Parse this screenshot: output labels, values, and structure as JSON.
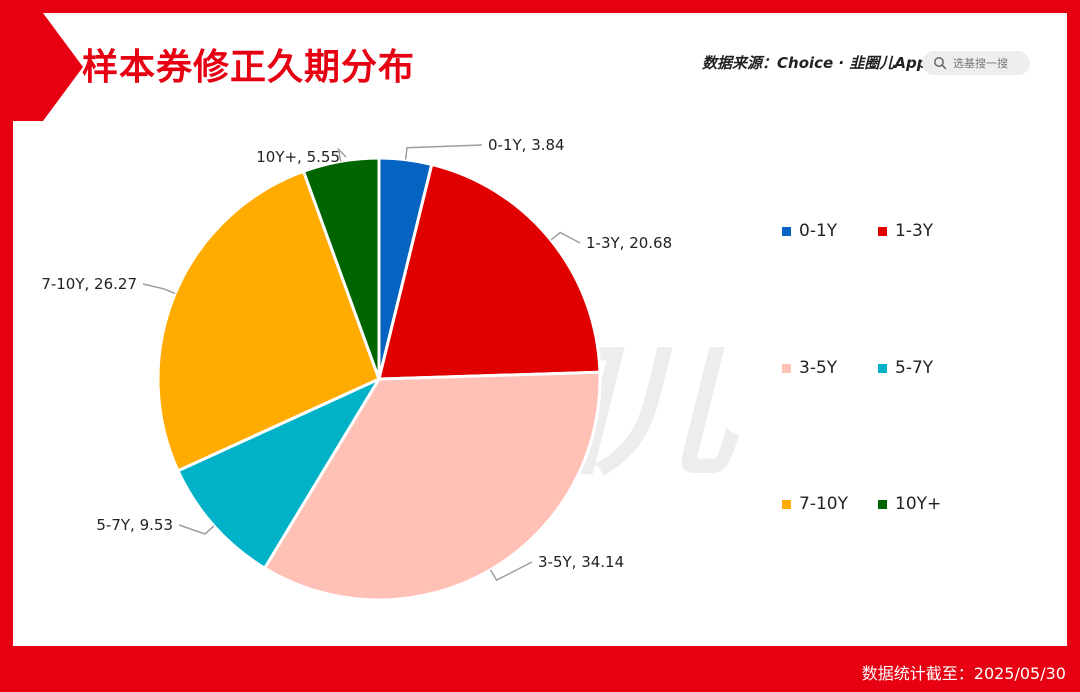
{
  "header": {
    "title": "样本券修正久期分布",
    "source": "数据来源：Choice · 韭圈儿App",
    "search_placeholder": "选基搜一搜"
  },
  "footer": {
    "note": "数据统计截至：2025/05/30"
  },
  "watermark": "韭圈儿",
  "colors": {
    "frame": "#e60012",
    "label_line": "#9e9e9e"
  },
  "chart_data": {
    "type": "pie",
    "title": "样本券修正久期分布",
    "categories": [
      "0-1Y",
      "1-3Y",
      "3-5Y",
      "5-7Y",
      "7-10Y",
      "10Y+"
    ],
    "values": [
      3.84,
      20.68,
      34.14,
      9.53,
      26.27,
      5.55
    ],
    "colors": [
      "#0563c1",
      "#e00000",
      "#ffc0b5",
      "#00b2c8",
      "#ffab00",
      "#006400"
    ],
    "labels": [
      "0-1Y, 3.84",
      "1-3Y, 20.68",
      "3-5Y, 34.14",
      "5-7Y, 9.53",
      "7-10Y, 26.27",
      "10Y+, 5.55"
    ],
    "start": "12 o'clock",
    "direction": "clockwise",
    "legend_position": "right"
  }
}
